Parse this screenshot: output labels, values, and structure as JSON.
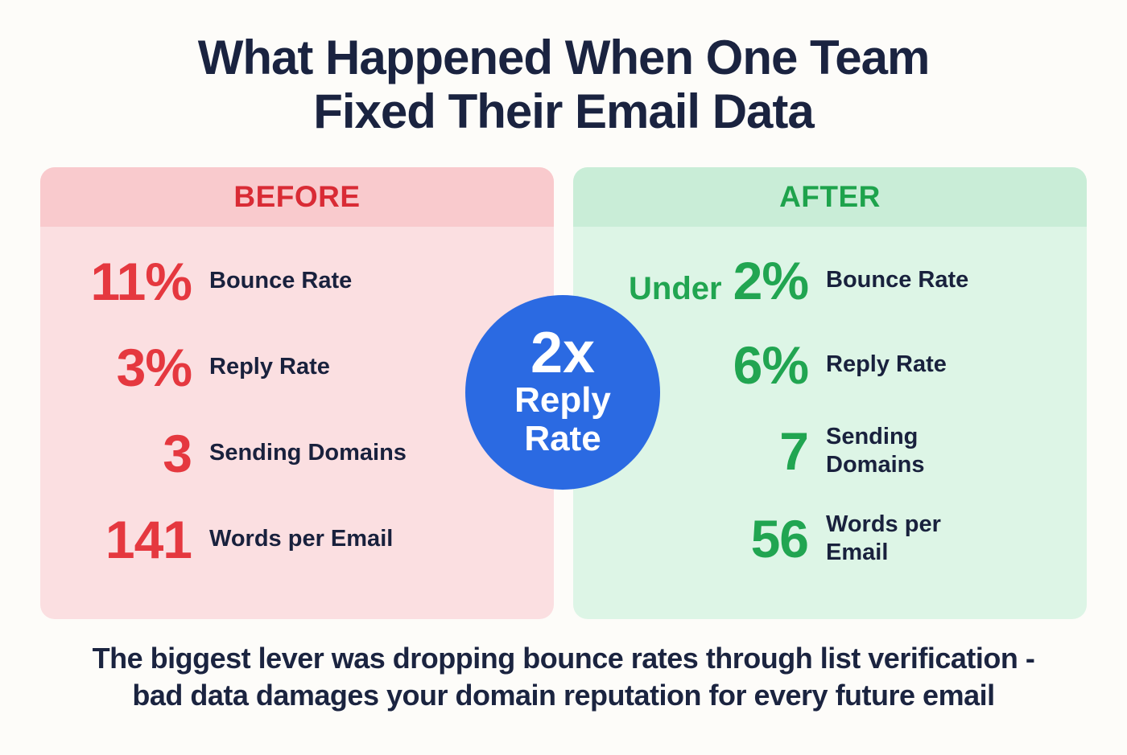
{
  "chart_data": {
    "type": "table",
    "title": "What Happened When One Team Fixed Their Email Data",
    "categories": [
      "Bounce Rate",
      "Reply Rate",
      "Sending Domains",
      "Words per Email"
    ],
    "series": [
      {
        "name": "BEFORE",
        "values": [
          "11%",
          "3%",
          "3",
          "141"
        ]
      },
      {
        "name": "AFTER",
        "values": [
          "Under 2%",
          "6%",
          "7",
          "56"
        ]
      }
    ],
    "annotation": "2x Reply Rate",
    "footnote": "The biggest lever was dropping bounce rates through list verification - bad data damages your domain reputation for every future email",
    "legend_position": "panel headers",
    "grid": false
  },
  "title": {
    "line1": "What Happened When One Team",
    "line2": "Fixed Their Email Data"
  },
  "before": {
    "header": "BEFORE",
    "stats": [
      {
        "value": "11%",
        "label": "Bounce Rate"
      },
      {
        "value": "3%",
        "label": "Reply Rate"
      },
      {
        "value": "3",
        "label": "Sending Domains"
      },
      {
        "value": "141",
        "label": "Words per Email"
      }
    ]
  },
  "after": {
    "header": "AFTER",
    "stats": [
      {
        "prefix": "Under",
        "value": "2%",
        "label": "Bounce Rate"
      },
      {
        "value": "6%",
        "label": "Reply Rate"
      },
      {
        "value": "7",
        "label": "Sending Domains"
      },
      {
        "value": "56",
        "label": "Words per Email"
      }
    ]
  },
  "badge": {
    "line1": "2x",
    "line2": "Reply",
    "line3": "Rate"
  },
  "footer": {
    "line1": "The biggest lever was dropping bounce rates through list verification -",
    "line2": "bad data damages your domain reputation for every future email"
  },
  "colors": {
    "before_accent": "#d92b35",
    "before_value": "#e5383f",
    "before_header_bg": "#f9cacd",
    "before_body_bg": "#fbdfe1",
    "after_accent": "#1ea34c",
    "after_value": "#21a551",
    "after_header_bg": "#c9edd7",
    "after_body_bg": "#ddf5e6",
    "badge_blue": "#2b6ae2",
    "text_navy": "#1a2340",
    "background": "#fdfcf9"
  }
}
